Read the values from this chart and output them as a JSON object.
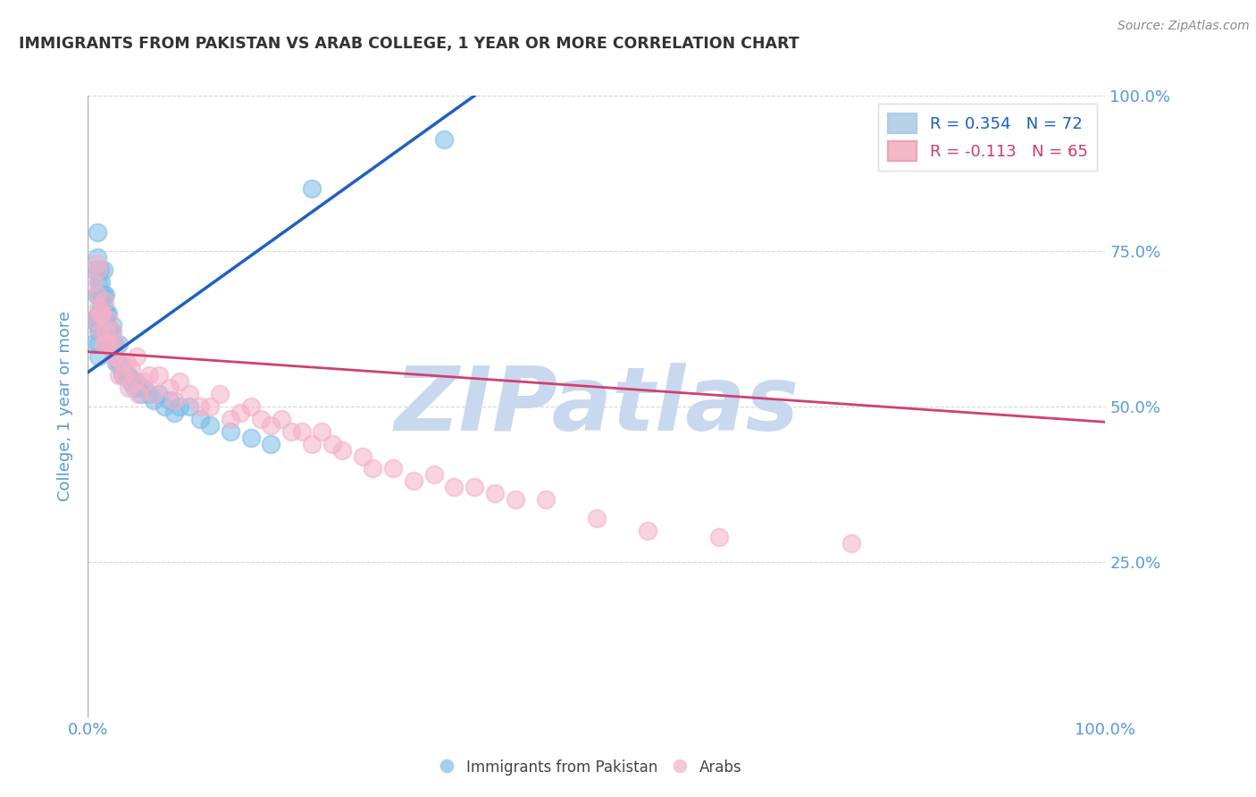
{
  "title": "IMMIGRANTS FROM PAKISTAN VS ARAB COLLEGE, 1 YEAR OR MORE CORRELATION CHART",
  "source_text": "Source: ZipAtlas.com",
  "ylabel": "College, 1 year or more",
  "xlim": [
    0.0,
    1.0
  ],
  "ylim": [
    0.0,
    1.0
  ],
  "legend_entry_1": "R = 0.354   N = 72",
  "legend_entry_2": "R = -0.113   N = 65",
  "legend_box_color_1": "#b8d0e8",
  "legend_box_color_2": "#f4b8c8",
  "watermark": "ZIPatlas",
  "pakistan_color": "#7bbce8",
  "arab_color": "#f4b0c8",
  "pakistan_line_color": "#2060c0",
  "arab_line_color": "#d04070",
  "pakistan_scatter_x": [
    0.005,
    0.005,
    0.007,
    0.008,
    0.008,
    0.009,
    0.009,
    0.01,
    0.01,
    0.01,
    0.01,
    0.01,
    0.01,
    0.01,
    0.01,
    0.012,
    0.012,
    0.012,
    0.013,
    0.013,
    0.013,
    0.014,
    0.014,
    0.015,
    0.015,
    0.015,
    0.016,
    0.016,
    0.017,
    0.017,
    0.018,
    0.018,
    0.019,
    0.019,
    0.02,
    0.02,
    0.021,
    0.022,
    0.023,
    0.024,
    0.025,
    0.026,
    0.027,
    0.028,
    0.03,
    0.03,
    0.033,
    0.034,
    0.035,
    0.038,
    0.04,
    0.042,
    0.045,
    0.047,
    0.05,
    0.052,
    0.055,
    0.06,
    0.065,
    0.07,
    0.075,
    0.08,
    0.085,
    0.09,
    0.1,
    0.11,
    0.12,
    0.14,
    0.16,
    0.18,
    0.22,
    0.35
  ],
  "pakistan_scatter_y": [
    0.64,
    0.6,
    0.72,
    0.68,
    0.64,
    0.78,
    0.74,
    0.72,
    0.7,
    0.68,
    0.65,
    0.63,
    0.62,
    0.6,
    0.58,
    0.72,
    0.68,
    0.65,
    0.7,
    0.66,
    0.62,
    0.68,
    0.64,
    0.72,
    0.68,
    0.64,
    0.66,
    0.62,
    0.68,
    0.64,
    0.65,
    0.62,
    0.63,
    0.6,
    0.65,
    0.61,
    0.62,
    0.6,
    0.62,
    0.63,
    0.6,
    0.6,
    0.58,
    0.57,
    0.6,
    0.57,
    0.56,
    0.55,
    0.56,
    0.55,
    0.55,
    0.54,
    0.53,
    0.54,
    0.53,
    0.52,
    0.53,
    0.52,
    0.51,
    0.52,
    0.5,
    0.51,
    0.49,
    0.5,
    0.5,
    0.48,
    0.47,
    0.46,
    0.45,
    0.44,
    0.85,
    0.93
  ],
  "arab_scatter_x": [
    0.005,
    0.007,
    0.008,
    0.009,
    0.01,
    0.01,
    0.012,
    0.013,
    0.014,
    0.015,
    0.016,
    0.017,
    0.018,
    0.02,
    0.022,
    0.024,
    0.025,
    0.027,
    0.028,
    0.03,
    0.033,
    0.035,
    0.038,
    0.04,
    0.043,
    0.045,
    0.048,
    0.05,
    0.055,
    0.06,
    0.065,
    0.07,
    0.08,
    0.085,
    0.09,
    0.1,
    0.11,
    0.12,
    0.13,
    0.14,
    0.15,
    0.16,
    0.17,
    0.18,
    0.19,
    0.2,
    0.21,
    0.22,
    0.23,
    0.24,
    0.25,
    0.27,
    0.28,
    0.3,
    0.32,
    0.34,
    0.36,
    0.38,
    0.4,
    0.42,
    0.45,
    0.5,
    0.55,
    0.62,
    0.75
  ],
  "arab_scatter_y": [
    0.7,
    0.64,
    0.73,
    0.68,
    0.66,
    0.72,
    0.65,
    0.62,
    0.65,
    0.6,
    0.67,
    0.62,
    0.6,
    0.64,
    0.6,
    0.62,
    0.58,
    0.58,
    0.6,
    0.55,
    0.57,
    0.55,
    0.57,
    0.53,
    0.56,
    0.54,
    0.58,
    0.52,
    0.54,
    0.55,
    0.52,
    0.55,
    0.53,
    0.51,
    0.54,
    0.52,
    0.5,
    0.5,
    0.52,
    0.48,
    0.49,
    0.5,
    0.48,
    0.47,
    0.48,
    0.46,
    0.46,
    0.44,
    0.46,
    0.44,
    0.43,
    0.42,
    0.4,
    0.4,
    0.38,
    0.39,
    0.37,
    0.37,
    0.36,
    0.35,
    0.35,
    0.32,
    0.3,
    0.29,
    0.28
  ],
  "pakistan_trend_x": [
    0.0,
    0.38
  ],
  "pakistan_trend_y": [
    0.555,
    1.0
  ],
  "arab_trend_x": [
    0.0,
    1.0
  ],
  "arab_trend_y": [
    0.588,
    0.475
  ],
  "grid_color": "#cccccc",
  "background_color": "#ffffff",
  "title_color": "#333333",
  "axis_label_color": "#5599dd",
  "tick_label_color": "#5599dd",
  "watermark_color": "#c8d8ee",
  "source_color": "#888888",
  "bottom_legend_labels": [
    "Immigrants from Pakistan",
    "Arabs"
  ]
}
